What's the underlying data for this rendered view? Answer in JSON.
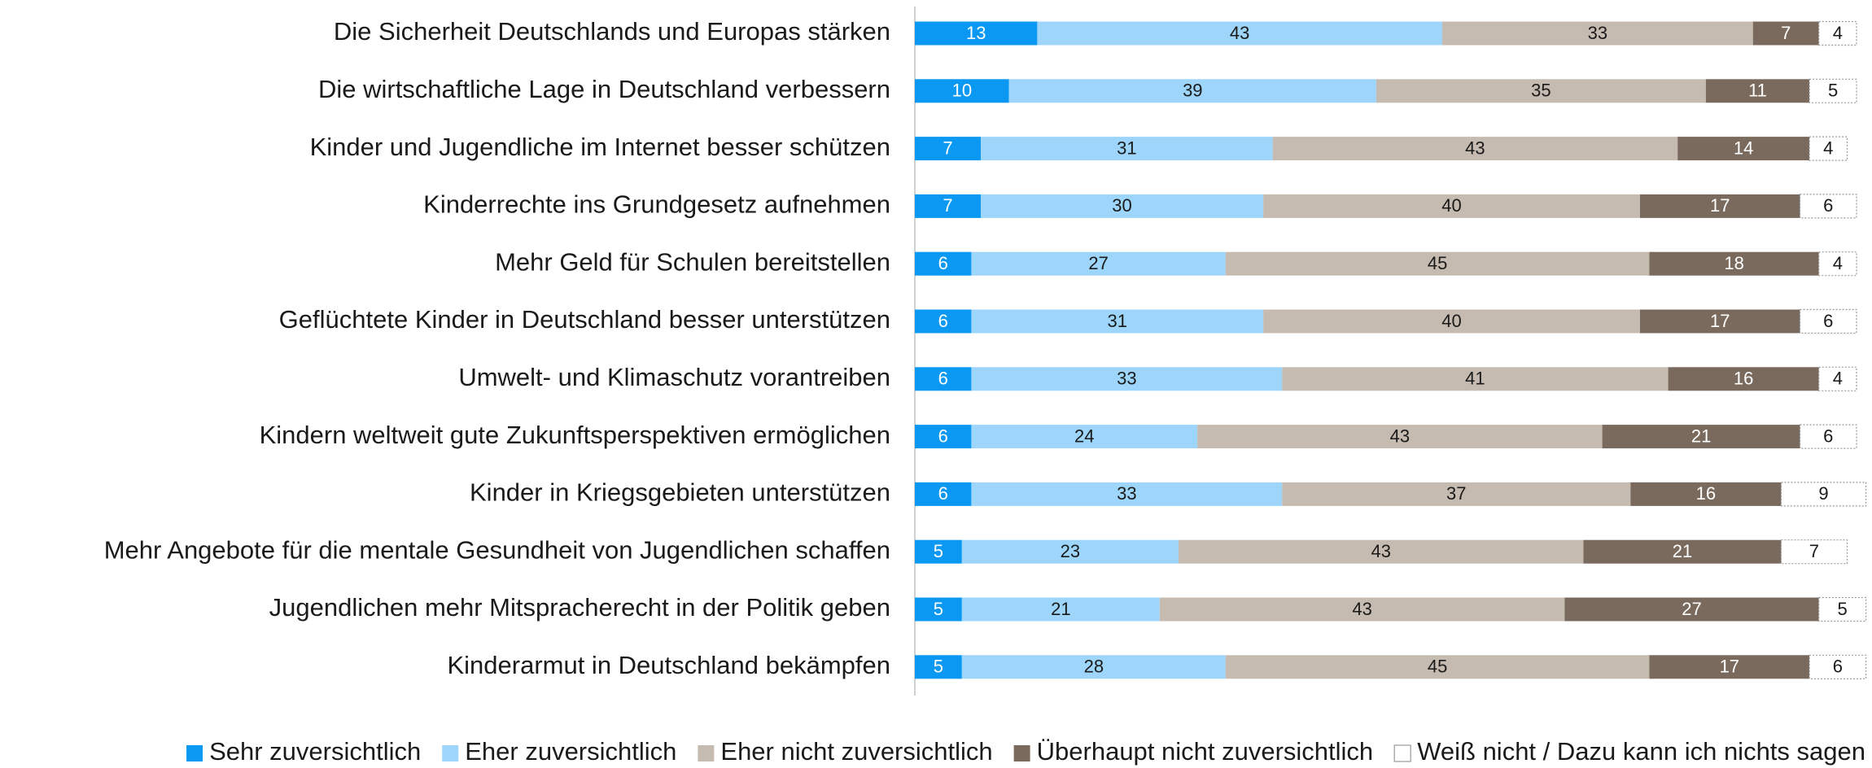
{
  "chart_data": {
    "type": "stacked_bar_horizontal",
    "categories": [
      "Die Sicherheit Deutschlands und Europas stärken",
      "Die wirtschaftliche Lage in Deutschland verbessern",
      "Kinder und Jugendliche im Internet besser schützen",
      "Kinderrechte ins Grundgesetz aufnehmen",
      "Mehr Geld für Schulen bereitstellen",
      "Geflüchtete Kinder in Deutschland besser unterstützen",
      "Umwelt- und Klimaschutz vorantreiben",
      "Kindern weltweit gute Zukunftsperspektiven ermöglichen",
      "Kinder in Kriegsgebieten unterstützen",
      "Mehr Angebote für die mentale Gesundheit von Jugendlichen schaffen",
      "Jugendlichen mehr Mitspracherecht in der Politik geben",
      "Kinderarmut in Deutschland bekämpfen"
    ],
    "series": [
      {
        "name": "Sehr zuversichtlich",
        "color": "#0a98f2",
        "values": [
          13,
          10,
          7,
          7,
          6,
          6,
          6,
          6,
          6,
          5,
          5,
          5
        ]
      },
      {
        "name": "Eher zuversichtlich",
        "color": "#9dd6fa",
        "values": [
          43,
          39,
          31,
          30,
          27,
          31,
          33,
          24,
          33,
          23,
          21,
          28
        ]
      },
      {
        "name": "Eher nicht zuversichtlich",
        "color": "#c6bbb0",
        "values": [
          33,
          35,
          43,
          40,
          45,
          40,
          41,
          43,
          37,
          43,
          43,
          45
        ]
      },
      {
        "name": "Überhaupt nicht zuversichtlich",
        "color": "#7a6a5d",
        "values": [
          7,
          11,
          14,
          17,
          18,
          17,
          16,
          21,
          16,
          21,
          27,
          17
        ]
      },
      {
        "name": "Weiß nicht / Dazu kann ich nichts sagen",
        "color": "#ffffff",
        "values": [
          4,
          5,
          4,
          6,
          4,
          6,
          4,
          6,
          9,
          7,
          5,
          6
        ]
      }
    ],
    "xlim": [
      0,
      100
    ],
    "legend": "bottom"
  }
}
